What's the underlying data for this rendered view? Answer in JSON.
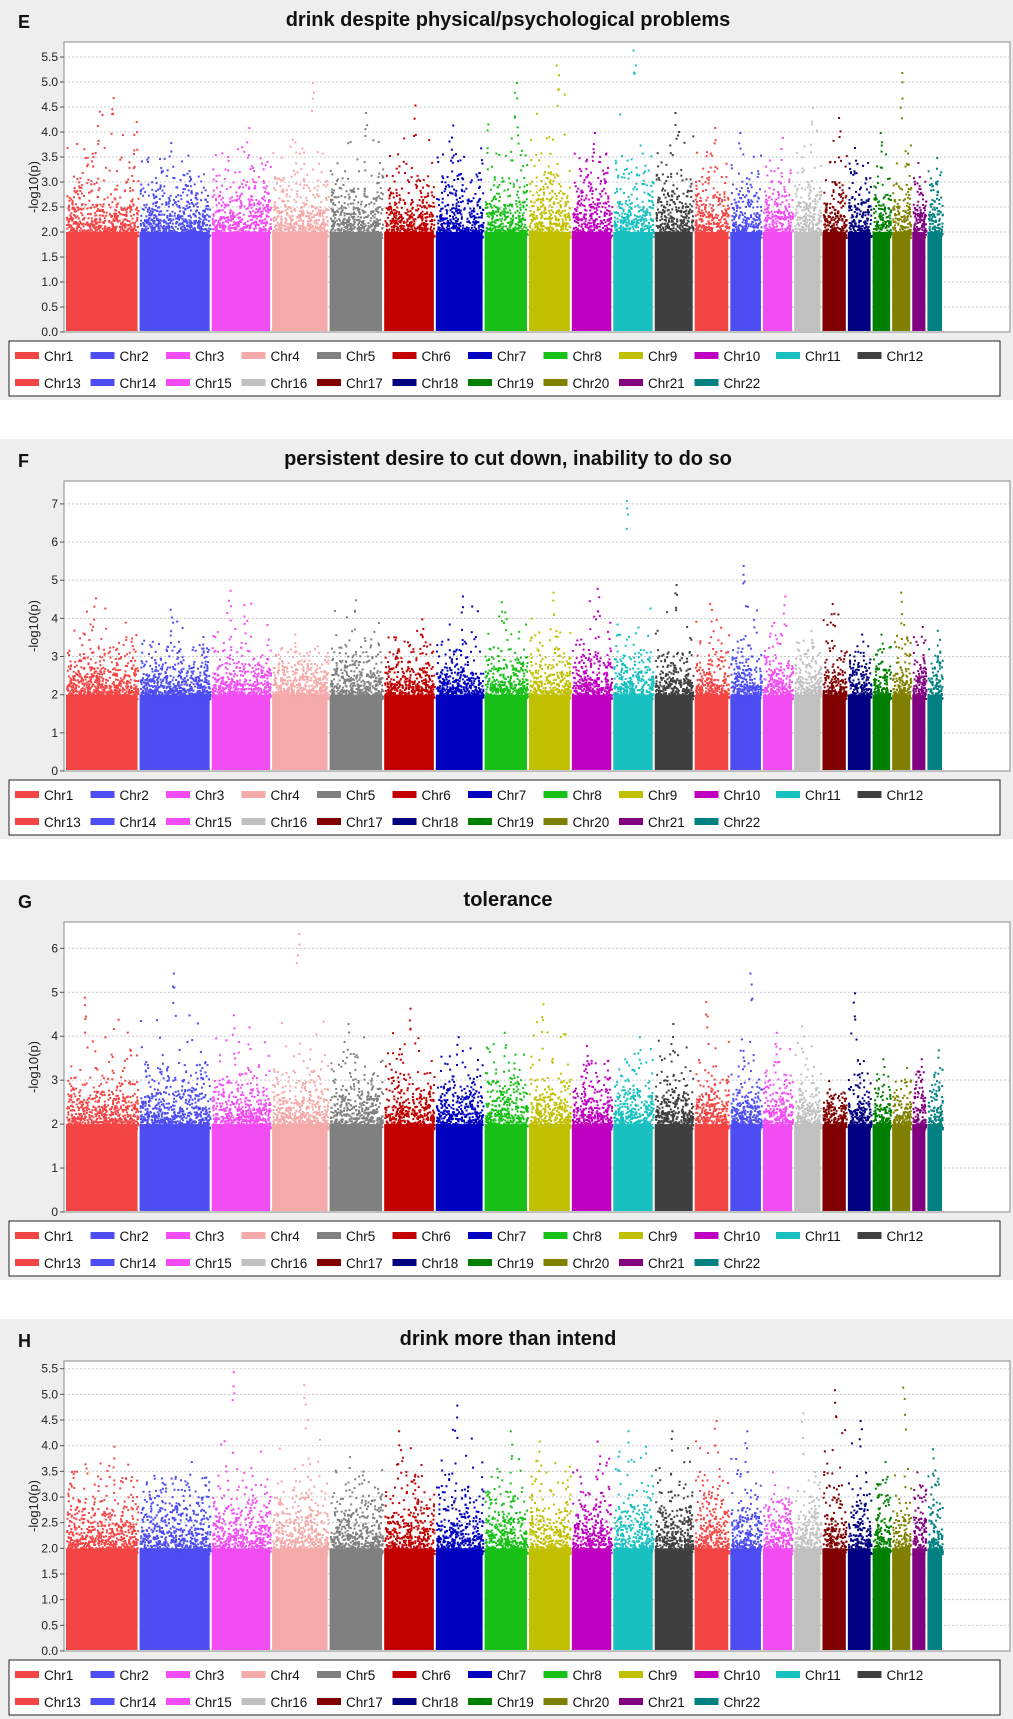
{
  "chart_data": [
    {
      "panel": "E",
      "title": "drink despite physical/psychological problems",
      "type": "scatter",
      "ylabel": "-log10(p)",
      "ylim": [
        0,
        5.8
      ],
      "yticks": [
        "0.0",
        "0.5",
        "1.0",
        "1.5",
        "2.0",
        "2.5",
        "3.0",
        "3.5",
        "4.0",
        "4.5",
        "5.0",
        "5.5"
      ],
      "grid": true,
      "legend_position": "bottom",
      "series": [
        {
          "name": "Chr1",
          "peak": 4.7
        },
        {
          "name": "Chr2",
          "peak": 3.8
        },
        {
          "name": "Chr3",
          "peak": 4.1
        },
        {
          "name": "Chr4",
          "peak": 5.0
        },
        {
          "name": "Chr5",
          "peak": 4.4
        },
        {
          "name": "Chr6",
          "peak": 4.55
        },
        {
          "name": "Chr7",
          "peak": 4.15
        },
        {
          "name": "Chr8",
          "peak": 5.0
        },
        {
          "name": "Chr9",
          "peak": 5.35
        },
        {
          "name": "Chr10",
          "peak": 4.0
        },
        {
          "name": "Chr11",
          "peak": 5.65
        },
        {
          "name": "Chr12",
          "peak": 4.4
        },
        {
          "name": "Chr13",
          "peak": 4.1
        },
        {
          "name": "Chr14",
          "peak": 4.0
        },
        {
          "name": "Chr15",
          "peak": 3.9
        },
        {
          "name": "Chr16",
          "peak": 4.5
        },
        {
          "name": "Chr17",
          "peak": 4.3
        },
        {
          "name": "Chr18",
          "peak": 3.7
        },
        {
          "name": "Chr19",
          "peak": 4.0
        },
        {
          "name": "Chr20",
          "peak": 5.2
        },
        {
          "name": "Chr21",
          "peak": 3.4
        },
        {
          "name": "Chr22",
          "peak": 3.5
        }
      ]
    },
    {
      "panel": "F",
      "title": "persistent desire to cut down, inability to do so",
      "type": "scatter",
      "ylabel": "-log10(p)",
      "ylim": [
        0,
        7.6
      ],
      "yticks": [
        "0",
        "1",
        "2",
        "3",
        "4",
        "5",
        "6",
        "7"
      ],
      "grid": true,
      "legend_position": "bottom",
      "series": [
        {
          "name": "Chr1",
          "peak": 4.55
        },
        {
          "name": "Chr2",
          "peak": 4.25
        },
        {
          "name": "Chr3",
          "peak": 4.75
        },
        {
          "name": "Chr4",
          "peak": 3.6
        },
        {
          "name": "Chr5",
          "peak": 4.5
        },
        {
          "name": "Chr6",
          "peak": 4.0
        },
        {
          "name": "Chr7",
          "peak": 4.6
        },
        {
          "name": "Chr8",
          "peak": 4.45
        },
        {
          "name": "Chr9",
          "peak": 4.7
        },
        {
          "name": "Chr10",
          "peak": 4.8
        },
        {
          "name": "Chr11",
          "peak": 7.1
        },
        {
          "name": "Chr12",
          "peak": 4.9
        },
        {
          "name": "Chr13",
          "peak": 4.4
        },
        {
          "name": "Chr14",
          "peak": 5.4
        },
        {
          "name": "Chr15",
          "peak": 4.6
        },
        {
          "name": "Chr16",
          "peak": 3.7
        },
        {
          "name": "Chr17",
          "peak": 4.4
        },
        {
          "name": "Chr18",
          "peak": 3.6
        },
        {
          "name": "Chr19",
          "peak": 3.6
        },
        {
          "name": "Chr20",
          "peak": 4.7
        },
        {
          "name": "Chr21",
          "peak": 3.8
        },
        {
          "name": "Chr22",
          "peak": 3.7
        }
      ]
    },
    {
      "panel": "G",
      "title": "tolerance",
      "type": "scatter",
      "ylabel": "-log10(p)",
      "ylim": [
        0,
        6.6
      ],
      "yticks": [
        "0",
        "1",
        "2",
        "3",
        "4",
        "5",
        "6"
      ],
      "grid": true,
      "legend_position": "bottom",
      "series": [
        {
          "name": "Chr1",
          "peak": 4.9
        },
        {
          "name": "Chr2",
          "peak": 5.45
        },
        {
          "name": "Chr3",
          "peak": 4.5
        },
        {
          "name": "Chr4",
          "peak": 6.35
        },
        {
          "name": "Chr5",
          "peak": 4.3
        },
        {
          "name": "Chr6",
          "peak": 4.65
        },
        {
          "name": "Chr7",
          "peak": 4.0
        },
        {
          "name": "Chr8",
          "peak": 4.1
        },
        {
          "name": "Chr9",
          "peak": 4.75
        },
        {
          "name": "Chr10",
          "peak": 3.8
        },
        {
          "name": "Chr11",
          "peak": 4.0
        },
        {
          "name": "Chr12",
          "peak": 4.3
        },
        {
          "name": "Chr13",
          "peak": 4.8
        },
        {
          "name": "Chr14",
          "peak": 5.45
        },
        {
          "name": "Chr15",
          "peak": 4.1
        },
        {
          "name": "Chr16",
          "peak": 4.25
        },
        {
          "name": "Chr17",
          "peak": 3.0
        },
        {
          "name": "Chr18",
          "peak": 5.0
        },
        {
          "name": "Chr19",
          "peak": 3.5
        },
        {
          "name": "Chr20",
          "peak": 3.3
        },
        {
          "name": "Chr21",
          "peak": 3.5
        },
        {
          "name": "Chr22",
          "peak": 3.7
        }
      ]
    },
    {
      "panel": "H",
      "title": "drink more than intend",
      "type": "scatter",
      "ylabel": "-log10(p)",
      "ylim": [
        0,
        5.65
      ],
      "yticks": [
        "0.0",
        "0.5",
        "1.0",
        "1.5",
        "2.0",
        "2.5",
        "3.0",
        "3.5",
        "4.0",
        "4.5",
        "5.0",
        "5.5"
      ],
      "grid": true,
      "legend_position": "bottom",
      "series": [
        {
          "name": "Chr1",
          "peak": 4.0
        },
        {
          "name": "Chr2",
          "peak": 3.7
        },
        {
          "name": "Chr3",
          "peak": 5.45
        },
        {
          "name": "Chr4",
          "peak": 5.2
        },
        {
          "name": "Chr5",
          "peak": 3.8
        },
        {
          "name": "Chr6",
          "peak": 4.3
        },
        {
          "name": "Chr7",
          "peak": 4.8
        },
        {
          "name": "Chr8",
          "peak": 4.3
        },
        {
          "name": "Chr9",
          "peak": 4.1
        },
        {
          "name": "Chr10",
          "peak": 4.1
        },
        {
          "name": "Chr11",
          "peak": 4.3
        },
        {
          "name": "Chr12",
          "peak": 4.3
        },
        {
          "name": "Chr13",
          "peak": 4.5
        },
        {
          "name": "Chr14",
          "peak": 4.3
        },
        {
          "name": "Chr15",
          "peak": 3.5
        },
        {
          "name": "Chr16",
          "peak": 4.65
        },
        {
          "name": "Chr17",
          "peak": 5.1
        },
        {
          "name": "Chr18",
          "peak": 4.5
        },
        {
          "name": "Chr19",
          "peak": 3.7
        },
        {
          "name": "Chr20",
          "peak": 5.15
        },
        {
          "name": "Chr21",
          "peak": 3.5
        },
        {
          "name": "Chr22",
          "peak": 3.95
        }
      ]
    }
  ],
  "chromosome_colors": [
    "#f44545",
    "#4d4df2",
    "#f24df2",
    "#f5aaaa",
    "#808080",
    "#c20000",
    "#0000c0",
    "#18c018",
    "#c0c000",
    "#c000c0",
    "#18c0c0",
    "#404040",
    "#f44545",
    "#4d4df2",
    "#f24df2",
    "#c0c0c0",
    "#800000",
    "#000080",
    "#008000",
    "#808000",
    "#800080",
    "#008080"
  ]
}
